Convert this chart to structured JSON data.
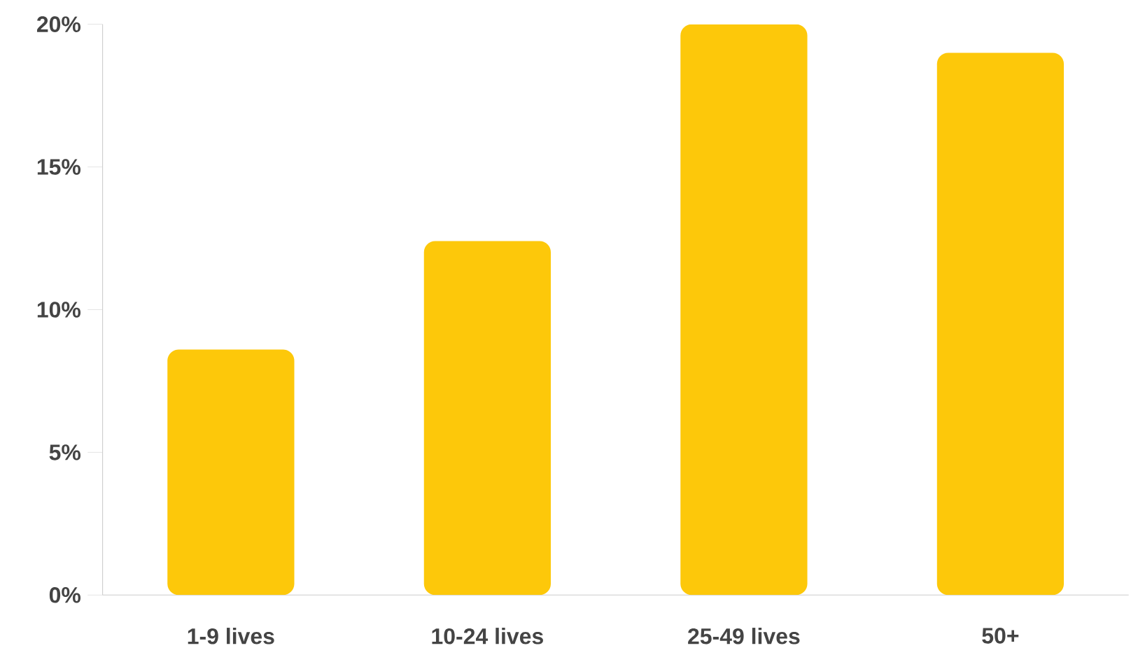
{
  "chart_data": {
    "type": "bar",
    "categories": [
      "1-9 lives",
      "10-24 lives",
      "25-49 lives",
      "50+"
    ],
    "values": [
      8.6,
      12.4,
      20.0,
      19.0
    ],
    "color": "#fdc80a",
    "ylim": [
      0,
      20
    ],
    "yticks": [
      {
        "value": 0,
        "label": "0%"
      },
      {
        "value": 5,
        "label": "5%"
      },
      {
        "value": 10,
        "label": "10%"
      },
      {
        "value": 15,
        "label": "15%"
      },
      {
        "value": 20,
        "label": "20%"
      }
    ],
    "grid": false
  }
}
